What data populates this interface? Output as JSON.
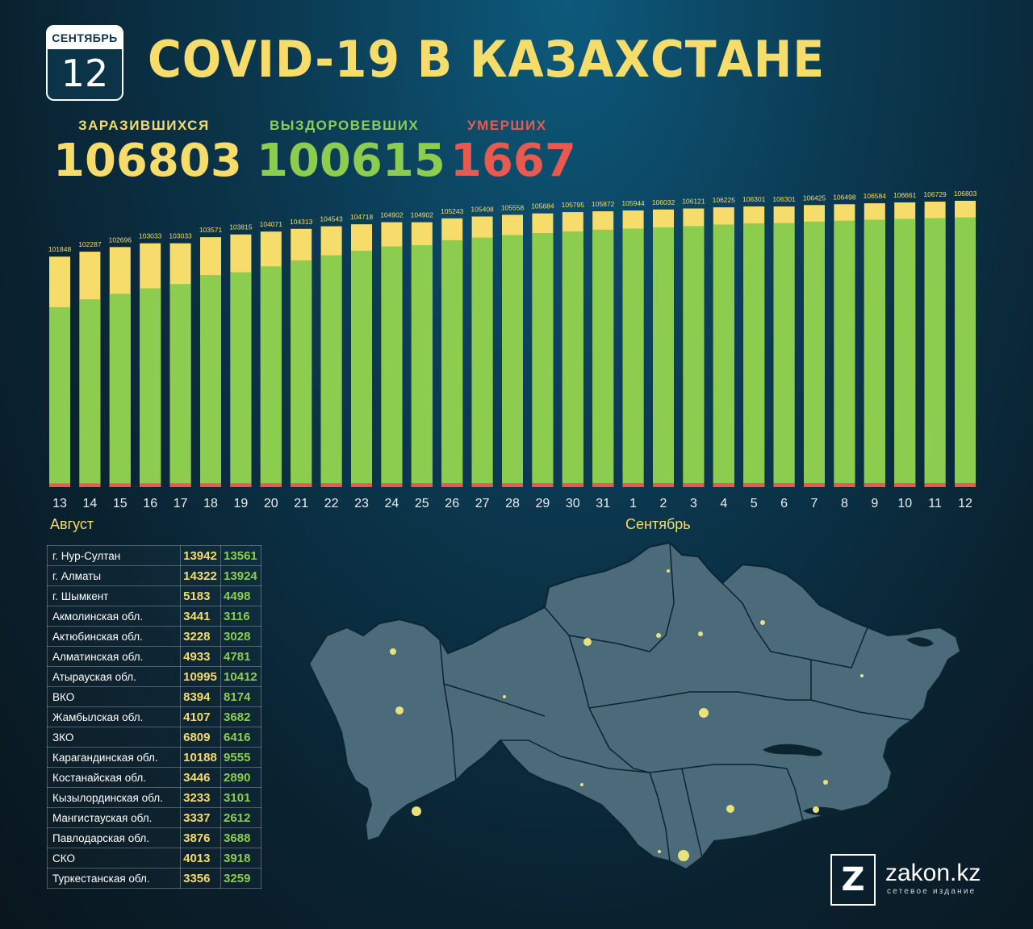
{
  "header": {
    "calendar_month": "СЕНТЯБРЬ",
    "calendar_day": "12",
    "title": "COVID-19 В КАЗАХСТАНЕ"
  },
  "stats": {
    "infected_label": "ЗАРАЗИВШИХСЯ",
    "infected_value": "106803",
    "recovered_label": "ВЫЗДОРОВЕВШИХ",
    "recovered_value": "100615",
    "deaths_label": "УМЕРШИХ",
    "deaths_value": "1667"
  },
  "months": {
    "august": "Август",
    "september": "Сентябрь"
  },
  "colors": {
    "infected": "#f6dc6a",
    "recovered": "#8ccd4f",
    "deaths": "#e85a4f"
  },
  "chart_data": {
    "type": "bar",
    "stacked": true,
    "categories": [
      "13",
      "14",
      "15",
      "16",
      "17",
      "18",
      "19",
      "20",
      "21",
      "22",
      "23",
      "24",
      "25",
      "26",
      "27",
      "28",
      "29",
      "30",
      "31",
      "1",
      "2",
      "3",
      "4",
      "5",
      "6",
      "7",
      "8",
      "9",
      "10",
      "11",
      "12"
    ],
    "series": [
      {
        "values": [
          101848,
          102287,
          102696,
          103033,
          103033,
          103571,
          103815,
          104071,
          104313,
          104543,
          104718,
          104902,
          104902,
          105243,
          105408,
          105558,
          105684,
          105795,
          105872,
          105944,
          106032,
          106121,
          106225,
          106301,
          106301,
          106425,
          106498,
          106584,
          106661,
          106729,
          106803
        ]
      },
      {
        "values": [
          79500,
          81600,
          82700,
          84000,
          85800,
          87900,
          88300,
          89900,
          91600,
          92900,
          94200,
          95300,
          95800,
          96700,
          97200,
          97700,
          98100,
          98400,
          98800,
          99000,
          99200,
          99400,
          99700,
          99900,
          100000,
          100200,
          100300,
          100400,
          100500,
          100550,
          100615
        ]
      },
      {
        "values": [
          1450,
          1468,
          1480,
          1493,
          1505,
          1518,
          1530,
          1541,
          1553,
          1564,
          1574,
          1583,
          1592,
          1600,
          1609,
          1617,
          1624,
          1630,
          1636,
          1641,
          1645,
          1650,
          1653,
          1656,
          1659,
          1661,
          1663,
          1664,
          1665,
          1666,
          1667
        ]
      }
    ],
    "grid": false,
    "legend": "none"
  },
  "regions": [
    {
      "name": "г. Нур-Султан",
      "infected": "13942",
      "recovered": "13561"
    },
    {
      "name": "г. Алматы",
      "infected": "14322",
      "recovered": "13924"
    },
    {
      "name": "г. Шымкент",
      "infected": "5183",
      "recovered": "4498"
    },
    {
      "name": "Акмолинская обл.",
      "infected": "3441",
      "recovered": "3116"
    },
    {
      "name": "Актюбинская обл.",
      "infected": "3228",
      "recovered": "3028"
    },
    {
      "name": "Алматинская обл.",
      "infected": "4933",
      "recovered": "4781"
    },
    {
      "name": "Атырауская обл.",
      "infected": "10995",
      "recovered": "10412"
    },
    {
      "name": "ВКО",
      "infected": "8394",
      "recovered": "8174"
    },
    {
      "name": "Жамбылская обл.",
      "infected": "4107",
      "recovered": "3682"
    },
    {
      "name": "ЗКО",
      "infected": "6809",
      "recovered": "6416"
    },
    {
      "name": "Карагандинская обл.",
      "infected": "10188",
      "recovered": "9555"
    },
    {
      "name": "Костанайская обл.",
      "infected": "3446",
      "recovered": "2890"
    },
    {
      "name": "Кызылординская обл.",
      "infected": "3233",
      "recovered": "3101"
    },
    {
      "name": "Мангистауская обл.",
      "infected": "3337",
      "recovered": "2612"
    },
    {
      "name": "Павлодарская обл.",
      "infected": "3876",
      "recovered": "3688"
    },
    {
      "name": "СКО",
      "infected": "4013",
      "recovered": "3918"
    },
    {
      "name": "Туркестанская обл.",
      "infected": "3356",
      "recovered": "3259"
    }
  ],
  "logo": {
    "letter": "Z",
    "name": "zakon.kz",
    "subtitle": "сетевое издание"
  }
}
